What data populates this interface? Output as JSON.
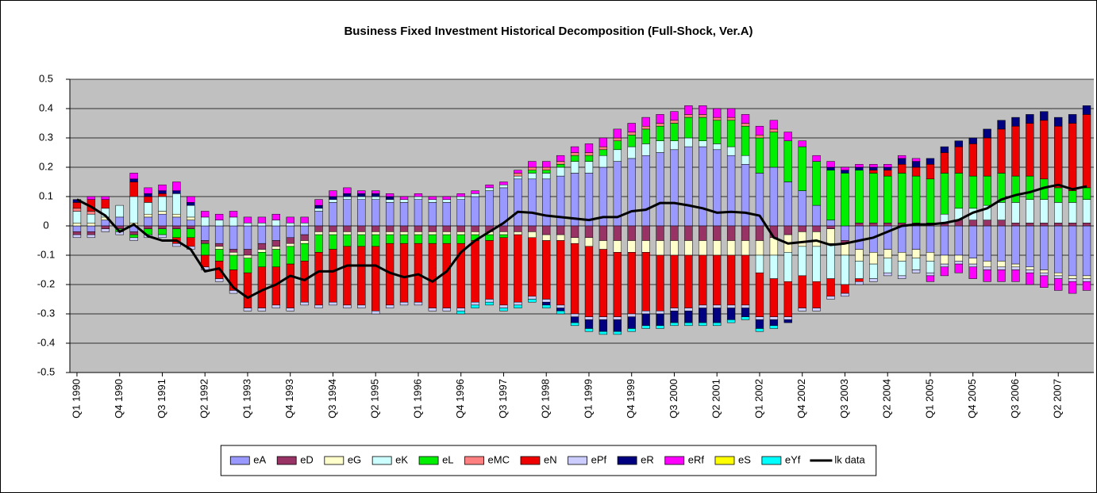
{
  "chart_data": {
    "type": "bar",
    "stacked": true,
    "title": "Business Fixed Investment Historical Decomposition (Full-Shock, Ver.A)",
    "categories": [
      "Q1 1990",
      null,
      null,
      "Q4 1990",
      null,
      null,
      "Q3 1991",
      null,
      null,
      "Q2 1992",
      null,
      null,
      "Q1 1993",
      null,
      null,
      "Q4 1993",
      null,
      null,
      "Q3 1994",
      null,
      null,
      "Q2 1995",
      null,
      null,
      "Q1 1996",
      null,
      null,
      "Q4 1996",
      null,
      null,
      "Q3 1997",
      null,
      null,
      "Q2 1998",
      null,
      null,
      "Q1 1999",
      null,
      null,
      "Q4 1999",
      null,
      null,
      "Q3 2000",
      null,
      null,
      "Q2 2001",
      null,
      null,
      "Q1 2002",
      null,
      null,
      "Q4 2002",
      null,
      null,
      "Q3 2003",
      null,
      null,
      "Q2 2004",
      null,
      null,
      "Q1 2005",
      null,
      null,
      "Q4 2005",
      null,
      null,
      "Q3 2006",
      null,
      null,
      "Q2 2007",
      null,
      null
    ],
    "ylim": [
      -0.5,
      0.5
    ],
    "yticks": [
      0.5,
      0.4,
      0.3,
      0.2,
      0.1,
      0,
      -0.1,
      -0.2,
      -0.3,
      -0.4,
      -0.5
    ],
    "grid": true,
    "legend": "bottom",
    "series": [
      {
        "name": "eA",
        "color": "#9999ff",
        "values": [
          -0.02,
          -0.02,
          0.02,
          0.03,
          -0.02,
          0.03,
          0.04,
          0.03,
          0.02,
          -0.05,
          -0.06,
          -0.08,
          -0.08,
          -0.06,
          -0.05,
          -0.04,
          -0.03,
          0.05,
          0.08,
          0.09,
          0.09,
          0.09,
          0.08,
          0.08,
          0.09,
          0.08,
          0.08,
          0.09,
          0.1,
          0.12,
          0.13,
          0.16,
          0.16,
          0.16,
          0.17,
          0.18,
          0.18,
          0.2,
          0.22,
          0.23,
          0.24,
          0.25,
          0.26,
          0.27,
          0.27,
          0.26,
          0.24,
          0.21,
          0.18,
          0.2,
          0.15,
          0.12,
          0.07,
          0.02,
          -0.05,
          -0.08,
          -0.09,
          -0.08,
          -0.09,
          -0.08,
          -0.09,
          -0.1,
          -0.1,
          -0.11,
          -0.12,
          -0.12,
          -0.13,
          -0.14,
          -0.15,
          -0.16,
          -0.17,
          -0.17
        ]
      },
      {
        "name": "eD",
        "color": "#993366",
        "values": [
          -0.01,
          -0.01,
          -0.01,
          -0.01,
          -0.01,
          -0.01,
          -0.01,
          -0.01,
          -0.01,
          -0.01,
          -0.01,
          -0.01,
          -0.02,
          -0.02,
          -0.02,
          -0.02,
          -0.02,
          -0.02,
          -0.02,
          -0.02,
          -0.02,
          -0.02,
          -0.02,
          -0.02,
          -0.02,
          -0.02,
          -0.02,
          -0.02,
          -0.02,
          -0.02,
          -0.02,
          -0.02,
          -0.02,
          -0.03,
          -0.03,
          -0.04,
          -0.04,
          -0.05,
          -0.05,
          -0.05,
          -0.05,
          -0.05,
          -0.05,
          -0.05,
          -0.05,
          -0.05,
          -0.05,
          -0.05,
          -0.05,
          -0.04,
          -0.03,
          -0.02,
          -0.02,
          -0.01,
          -0.01,
          0.01,
          0.01,
          0.01,
          0.01,
          0.01,
          0.01,
          0.01,
          0.02,
          0.02,
          0.02,
          0.02,
          0.01,
          0.01,
          0.01,
          0.01,
          0.01,
          0.01
        ]
      },
      {
        "name": "eG",
        "color": "#ffffcc",
        "values": [
          0.01,
          0.01,
          0.01,
          0.0,
          0.01,
          0.01,
          0.01,
          0.01,
          0.01,
          0.0,
          -0.01,
          -0.01,
          -0.01,
          -0.01,
          -0.01,
          -0.01,
          -0.01,
          -0.01,
          -0.01,
          -0.01,
          -0.01,
          -0.01,
          -0.01,
          -0.01,
          -0.01,
          -0.01,
          -0.01,
          -0.01,
          -0.01,
          -0.01,
          -0.01,
          -0.01,
          -0.02,
          -0.02,
          -0.02,
          -0.02,
          -0.03,
          -0.03,
          -0.04,
          -0.04,
          -0.04,
          -0.05,
          -0.05,
          -0.05,
          -0.05,
          -0.05,
          -0.05,
          -0.05,
          -0.05,
          -0.06,
          -0.06,
          -0.05,
          -0.05,
          -0.05,
          -0.04,
          -0.04,
          -0.04,
          -0.03,
          -0.03,
          -0.03,
          -0.03,
          -0.03,
          -0.02,
          -0.02,
          -0.02,
          -0.02,
          -0.01,
          -0.01,
          -0.01,
          -0.01,
          -0.01,
          -0.01
        ]
      },
      {
        "name": "eK",
        "color": "#ccffff",
        "values": [
          0.04,
          0.03,
          0.03,
          0.04,
          0.09,
          0.04,
          0.05,
          0.07,
          0.04,
          0.03,
          0.02,
          0.03,
          0.01,
          0.01,
          0.02,
          0.01,
          0.01,
          0.01,
          0.01,
          0.01,
          0.01,
          0.01,
          0.01,
          0.01,
          0.01,
          0.01,
          0.01,
          0.01,
          0.01,
          0.01,
          0.01,
          0.01,
          0.02,
          0.02,
          0.03,
          0.04,
          0.04,
          0.04,
          0.04,
          0.04,
          0.04,
          0.04,
          0.03,
          0.03,
          0.02,
          0.02,
          0.03,
          0.03,
          -0.06,
          -0.08,
          -0.1,
          -0.1,
          -0.12,
          -0.12,
          -0.1,
          -0.06,
          -0.05,
          -0.05,
          -0.05,
          -0.04,
          -0.04,
          0.03,
          0.04,
          0.04,
          0.05,
          0.06,
          0.07,
          0.08,
          0.08,
          0.07,
          0.07,
          0.08
        ]
      },
      {
        "name": "eL",
        "color": "#00ee00",
        "values": [
          0.0,
          0.0,
          0.0,
          -0.01,
          -0.01,
          -0.02,
          -0.02,
          -0.03,
          -0.03,
          -0.04,
          -0.04,
          -0.05,
          -0.05,
          -0.05,
          -0.06,
          -0.06,
          -0.06,
          -0.06,
          -0.05,
          -0.04,
          -0.04,
          -0.04,
          -0.03,
          -0.03,
          -0.03,
          -0.03,
          -0.03,
          -0.03,
          -0.02,
          -0.02,
          -0.01,
          0.0,
          0.01,
          0.01,
          0.01,
          0.02,
          0.02,
          0.02,
          0.03,
          0.04,
          0.05,
          0.05,
          0.06,
          0.07,
          0.08,
          0.08,
          0.09,
          0.1,
          0.12,
          0.12,
          0.14,
          0.15,
          0.15,
          0.17,
          0.18,
          0.18,
          0.17,
          0.16,
          0.17,
          0.16,
          0.15,
          0.14,
          0.12,
          0.11,
          0.1,
          0.1,
          0.09,
          0.08,
          0.07,
          0.05,
          0.04,
          0.04
        ]
      },
      {
        "name": "eMC",
        "color": "#ff8080",
        "values": [
          0.01,
          0.01,
          0.0,
          0.0,
          0.0,
          0.0,
          0.0,
          0.0,
          0.0,
          0.0,
          0.0,
          0.0,
          0.0,
          0.0,
          0.0,
          0.0,
          0.0,
          0.0,
          0.0,
          0.0,
          0.0,
          0.0,
          0.0,
          0.0,
          0.0,
          0.0,
          0.0,
          0.0,
          0.0,
          0.0,
          0.0,
          0.01,
          0.01,
          0.01,
          0.01,
          0.01,
          0.01,
          0.01,
          0.01,
          0.01,
          0.01,
          0.01,
          0.01,
          0.01,
          0.01,
          0.01,
          0.01,
          0.01,
          0.01,
          0.01,
          0.0,
          0.0,
          0.0,
          0.0,
          0.0,
          0.0,
          0.0,
          0.0,
          0.0,
          0.0,
          0.0,
          0.0,
          0.0,
          0.0,
          0.0,
          0.0,
          0.0,
          0.0,
          0.0,
          0.0,
          0.0,
          0.0
        ]
      },
      {
        "name": "eN",
        "color": "#ee0000",
        "values": [
          0.02,
          0.04,
          0.03,
          0.0,
          0.05,
          0.02,
          0.01,
          -0.02,
          -0.03,
          -0.04,
          -0.06,
          -0.07,
          -0.12,
          -0.14,
          -0.13,
          -0.15,
          -0.14,
          -0.18,
          -0.18,
          -0.2,
          -0.2,
          -0.22,
          -0.21,
          -0.2,
          -0.2,
          -0.22,
          -0.22,
          -0.22,
          -0.21,
          -0.2,
          -0.23,
          -0.23,
          -0.2,
          -0.2,
          -0.22,
          -0.24,
          -0.24,
          -0.23,
          -0.22,
          -0.21,
          -0.2,
          -0.19,
          -0.18,
          -0.18,
          -0.17,
          -0.17,
          -0.17,
          -0.17,
          -0.15,
          -0.13,
          -0.12,
          -0.11,
          -0.09,
          -0.06,
          -0.03,
          -0.01,
          0.01,
          0.02,
          0.03,
          0.03,
          0.05,
          0.07,
          0.09,
          0.11,
          0.13,
          0.15,
          0.17,
          0.18,
          0.2,
          0.21,
          0.23,
          0.25
        ]
      },
      {
        "name": "ePf",
        "color": "#ccccff",
        "values": [
          -0.01,
          -0.01,
          -0.01,
          -0.01,
          -0.01,
          -0.01,
          -0.01,
          -0.01,
          -0.01,
          -0.01,
          -0.01,
          -0.01,
          -0.01,
          -0.01,
          -0.01,
          -0.01,
          -0.01,
          -0.01,
          -0.01,
          -0.01,
          -0.01,
          -0.01,
          -0.01,
          -0.01,
          -0.01,
          -0.01,
          -0.01,
          -0.01,
          -0.01,
          -0.01,
          -0.01,
          -0.01,
          -0.01,
          -0.01,
          -0.01,
          -0.01,
          -0.01,
          -0.01,
          -0.01,
          -0.01,
          -0.01,
          -0.01,
          -0.01,
          -0.01,
          -0.01,
          -0.01,
          -0.01,
          -0.01,
          -0.01,
          -0.01,
          -0.01,
          -0.01,
          -0.01,
          -0.01,
          -0.01,
          -0.01,
          -0.01,
          -0.01,
          -0.01,
          -0.01,
          -0.01,
          -0.01,
          -0.01,
          -0.01,
          -0.01,
          -0.01,
          -0.01,
          -0.01,
          -0.01,
          -0.01,
          -0.01,
          -0.01
        ]
      },
      {
        "name": "eR",
        "color": "#000080",
        "values": [
          0.01,
          0.0,
          0.0,
          0.0,
          0.01,
          0.01,
          0.01,
          0.01,
          0.01,
          0.0,
          0.0,
          0.0,
          0.0,
          0.0,
          0.0,
          0.0,
          0.0,
          0.01,
          0.01,
          0.01,
          0.01,
          0.01,
          0.01,
          0.0,
          0.0,
          0.0,
          0.0,
          0.0,
          0.0,
          0.0,
          0.0,
          0.0,
          0.0,
          -0.01,
          -0.01,
          -0.02,
          -0.03,
          -0.04,
          -0.04,
          -0.04,
          -0.04,
          -0.04,
          -0.04,
          -0.04,
          -0.05,
          -0.05,
          -0.04,
          -0.03,
          -0.03,
          -0.02,
          -0.01,
          0.0,
          0.0,
          0.01,
          0.01,
          0.01,
          0.01,
          0.01,
          0.02,
          0.02,
          0.02,
          0.02,
          0.02,
          0.02,
          0.03,
          0.03,
          0.03,
          0.03,
          0.03,
          0.03,
          0.03,
          0.03
        ]
      },
      {
        "name": "eRf",
        "color": "#ff00ff",
        "values": [
          0.0,
          0.01,
          0.01,
          0.0,
          0.02,
          0.02,
          0.02,
          0.03,
          0.02,
          0.02,
          0.02,
          0.02,
          0.02,
          0.02,
          0.02,
          0.02,
          0.02,
          0.02,
          0.02,
          0.02,
          0.01,
          0.01,
          0.01,
          0.01,
          0.01,
          0.01,
          0.01,
          0.01,
          0.01,
          0.01,
          0.01,
          0.01,
          0.02,
          0.02,
          0.02,
          0.02,
          0.03,
          0.03,
          0.03,
          0.03,
          0.03,
          0.03,
          0.03,
          0.03,
          0.03,
          0.03,
          0.03,
          0.03,
          0.03,
          0.03,
          0.03,
          0.02,
          0.02,
          0.02,
          0.01,
          0.01,
          0.01,
          0.01,
          0.01,
          0.01,
          -0.02,
          -0.03,
          -0.03,
          -0.04,
          -0.04,
          -0.04,
          -0.04,
          -0.04,
          -0.04,
          -0.04,
          -0.04,
          -0.03
        ]
      },
      {
        "name": "eS",
        "color": "#ffff00",
        "values": [
          0.0,
          0.0,
          0.0,
          0.0,
          0.0,
          0.0,
          0.0,
          0.0,
          0.0,
          0.0,
          0.0,
          0.0,
          0.0,
          0.0,
          0.0,
          0.0,
          0.0,
          0.0,
          0.0,
          0.0,
          0.0,
          0.0,
          0.0,
          0.0,
          0.0,
          0.0,
          0.0,
          0.0,
          0.0,
          0.0,
          0.0,
          0.0,
          0.0,
          0.0,
          0.0,
          0.0,
          0.0,
          0.0,
          0.0,
          0.0,
          0.0,
          0.0,
          0.0,
          0.0,
          0.0,
          0.0,
          0.0,
          0.0,
          0.0,
          0.0,
          0.0,
          0.0,
          0.0,
          0.0,
          0.0,
          0.0,
          0.0,
          0.0,
          0.0,
          0.0,
          0.0,
          0.0,
          0.0,
          0.0,
          0.0,
          0.0,
          0.0,
          0.0,
          0.0,
          0.0,
          0.0,
          0.0
        ]
      },
      {
        "name": "eYf",
        "color": "#00ffff",
        "values": [
          0.0,
          0.0,
          0.0,
          0.0,
          0.0,
          0.0,
          0.0,
          0.0,
          0.0,
          0.0,
          0.0,
          0.0,
          0.0,
          0.0,
          0.0,
          0.0,
          0.0,
          0.0,
          0.0,
          0.0,
          0.0,
          0.0,
          0.0,
          0.0,
          0.0,
          0.0,
          0.0,
          -0.01,
          -0.01,
          -0.01,
          -0.01,
          -0.01,
          -0.01,
          -0.01,
          -0.01,
          -0.01,
          -0.01,
          -0.01,
          -0.01,
          -0.01,
          -0.01,
          -0.01,
          -0.01,
          -0.01,
          -0.01,
          -0.01,
          -0.01,
          -0.01,
          -0.01,
          -0.01,
          0.0,
          0.0,
          0.0,
          0.0,
          0.0,
          0.0,
          0.0,
          0.0,
          0.0,
          0.0,
          0.0,
          0.0,
          0.0,
          0.0,
          0.0,
          0.0,
          0.0,
          0.0,
          0.0,
          0.0,
          0.0,
          0.0
        ]
      },
      {
        "name": "lk data",
        "color": "#000000",
        "type": "line",
        "values": [
          0.09,
          0.065,
          0.035,
          -0.02,
          0.005,
          -0.035,
          -0.05,
          -0.05,
          -0.08,
          -0.155,
          -0.145,
          -0.21,
          -0.245,
          -0.22,
          -0.2,
          -0.17,
          -0.185,
          -0.155,
          -0.155,
          -0.135,
          -0.135,
          -0.135,
          -0.16,
          -0.175,
          -0.165,
          -0.19,
          -0.155,
          -0.09,
          -0.05,
          -0.02,
          0.01,
          0.048,
          0.045,
          0.035,
          0.03,
          0.025,
          0.02,
          0.03,
          0.03,
          0.05,
          0.055,
          0.078,
          0.078,
          0.07,
          0.06,
          0.045,
          0.048,
          0.045,
          0.035,
          -0.04,
          -0.06,
          -0.055,
          -0.05,
          -0.065,
          -0.06,
          -0.05,
          -0.04,
          -0.02,
          0.0,
          0.005,
          0.005,
          0.01,
          0.02,
          0.045,
          0.06,
          0.09,
          0.105,
          0.115,
          0.13,
          0.14,
          0.125,
          0.135
        ]
      }
    ]
  }
}
